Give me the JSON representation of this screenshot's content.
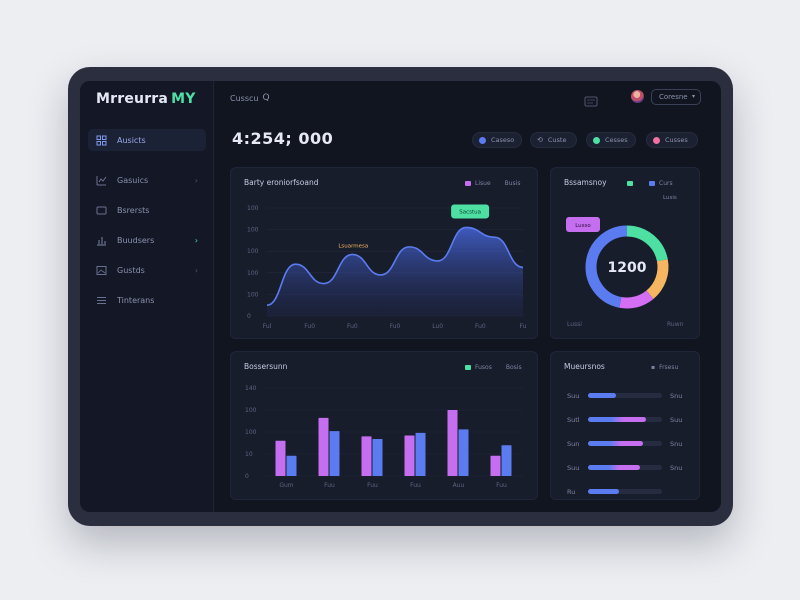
{
  "app": {
    "logo_text": "Mrreurra",
    "logo_accent": "MY"
  },
  "header": {
    "breadcrumb": "Cusscu",
    "search_glyph": "Q",
    "user_button": "Coresne",
    "caret": "▾"
  },
  "sidebar": {
    "items": [
      {
        "label": "Ausicts",
        "icon": "grid-icon",
        "active": true,
        "chevron": ""
      },
      {
        "label": "Gasuics",
        "icon": "chart-icon",
        "active": false,
        "chevron": "›"
      },
      {
        "label": "Bsrersts",
        "icon": "folder-icon",
        "active": false,
        "chevron": ""
      },
      {
        "label": "Buudsers",
        "icon": "bar-chart-icon",
        "active": false,
        "chevron": "›"
      },
      {
        "label": "Gustds",
        "icon": "image-icon",
        "active": false,
        "chevron": "›"
      },
      {
        "label": "Tinterans",
        "icon": "list-icon",
        "active": false,
        "chevron": ""
      }
    ]
  },
  "summary": {
    "value": "4:254; 000"
  },
  "filters": [
    {
      "label": "Caseso",
      "color": "#5b7cf0"
    },
    {
      "label": "Custe",
      "color": "#8a91ad"
    },
    {
      "label": "Cesses",
      "color": "#4ee0a3"
    },
    {
      "label": "Cusses",
      "color": "#f070a0"
    }
  ],
  "line_card": {
    "title": "Barty eroniorfsoand",
    "legend": [
      {
        "label": "Lisue",
        "color": "#c56ef0"
      },
      {
        "label": "Busis",
        "color": "#7d84a0"
      }
    ],
    "y_ticks": [
      "100",
      "100",
      "100",
      "100",
      "100",
      "0"
    ],
    "x_ticks": [
      "Ful",
      "Fu0",
      "Fu0",
      "Fu0",
      "Lu0",
      "Fu0",
      "Fu"
    ],
    "annotation": "Lsuarmesa",
    "tooltip": "Sacstua",
    "points": [
      {
        "x": 0,
        "y": 10
      },
      {
        "x": 1,
        "y": 48
      },
      {
        "x": 2,
        "y": 30
      },
      {
        "x": 3,
        "y": 57
      },
      {
        "x": 4,
        "y": 38
      },
      {
        "x": 5,
        "y": 64
      },
      {
        "x": 6,
        "y": 51
      },
      {
        "x": 7,
        "y": 82
      },
      {
        "x": 8,
        "y": 73
      },
      {
        "x": 9,
        "y": 45
      }
    ],
    "ylim": [
      0,
      100
    ]
  },
  "donut_card": {
    "title": "Bssamsnoy",
    "legend": [
      {
        "label": "",
        "color": "#4ee0a3"
      },
      {
        "label": "Curs",
        "color": "#5b7cf0"
      }
    ],
    "legend2": "Lusis",
    "tooltip": "Lusso",
    "center": "1200",
    "slices": [
      {
        "value": 22,
        "color": "#4ee0a3"
      },
      {
        "value": 17,
        "color": "#f5b561"
      },
      {
        "value": 14,
        "color": "#d36ef5"
      },
      {
        "value": 47,
        "color": "#5b7cf0"
      }
    ],
    "bottom_left": "Lussi",
    "bottom_right": "Ruwn"
  },
  "bar_card": {
    "title": "Bossersunn",
    "legend": [
      {
        "label": "Fusos",
        "color": "#4ee0a3"
      },
      {
        "label": "Bosis",
        "color": "#7d84a0"
      }
    ],
    "y_ticks": [
      "140",
      "100",
      "100",
      "10",
      "0"
    ],
    "categories": [
      "Gum",
      "Fuu",
      "Fuu",
      "Fuu",
      "Auu",
      "Fuu"
    ],
    "series": [
      {
        "name": "Fusos",
        "color": "#c56ef0",
        "values": [
          40,
          66,
          45,
          46,
          75,
          23
        ]
      },
      {
        "name": "Bosis",
        "color": "#5b7cf0",
        "values": [
          23,
          51,
          42,
          49,
          53,
          35
        ]
      }
    ],
    "ylim": [
      0,
      100
    ]
  },
  "progress_card": {
    "title": "Mueursnos",
    "action": "Frsesu",
    "rows": [
      {
        "label": "Suu",
        "value": 0.38,
        "color": "#5b7cf0",
        "right": "Snu"
      },
      {
        "label": "Sutl",
        "value": 0.78,
        "color": "#c56ef0",
        "right": "Suu"
      },
      {
        "label": "Sun",
        "value": 0.74,
        "color": "#c56ef0",
        "right": "Snu"
      },
      {
        "label": "Suu",
        "value": 0.7,
        "color": "#c56ef0",
        "right": "Snu"
      },
      {
        "label": "Ru",
        "value": 0.42,
        "color": "#5b7cf0",
        "right": ""
      }
    ]
  }
}
